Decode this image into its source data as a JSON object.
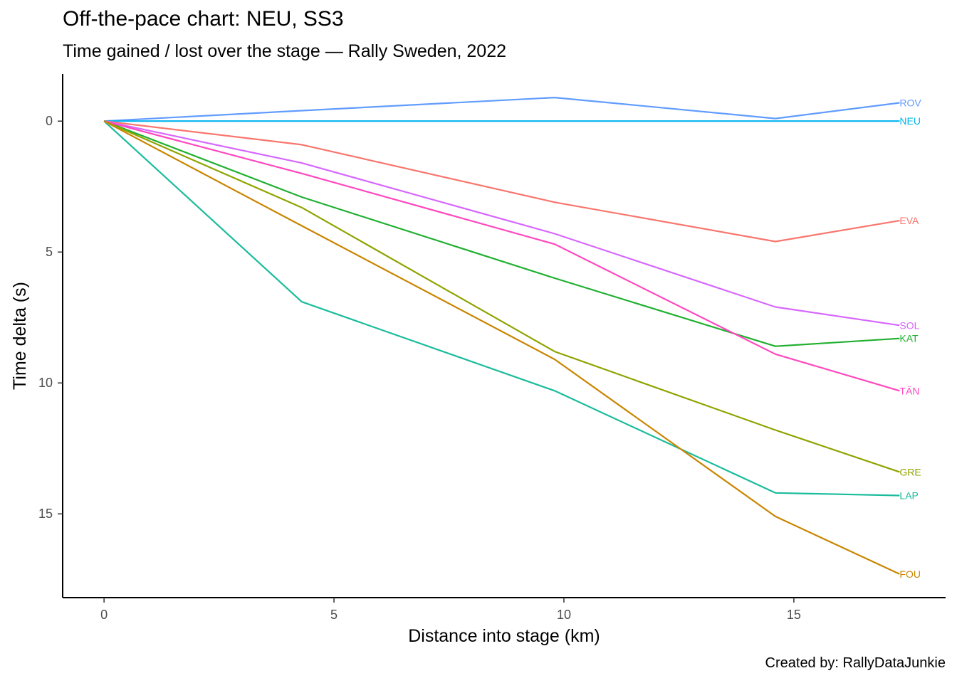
{
  "chart_data": {
    "type": "line",
    "title": "Off-the-pace chart: NEU, SS3",
    "subtitle": "Time gained / lost over the stage — Rally Sweden, 2022",
    "caption": "Created by: RallyDataJunkie",
    "xlabel": "Distance into stage (km)",
    "ylabel": "Time delta (s)",
    "xlim": [
      -0.9,
      18.3
    ],
    "ylim": [
      -1.8,
      18.2
    ],
    "y_reversed": true,
    "x_ticks": [
      0,
      5,
      10,
      15
    ],
    "y_ticks": [
      0,
      5,
      10,
      15
    ],
    "grid": false,
    "legend": "none (direct end labels)",
    "x": [
      0,
      4.3,
      9.8,
      14.6,
      17.3
    ],
    "series": [
      {
        "name": "ROV",
        "color": "#619CFF",
        "values": [
          0,
          -0.4,
          -0.9,
          -0.1,
          -0.7
        ]
      },
      {
        "name": "NEU",
        "color": "#00B4EF",
        "values": [
          0,
          0,
          0,
          0,
          0
        ]
      },
      {
        "name": "EVA",
        "color": "#F8766D",
        "values": [
          0,
          0.9,
          3.1,
          4.6,
          3.8
        ]
      },
      {
        "name": "SOL",
        "color": "#D767FF",
        "values": [
          0,
          1.6,
          4.3,
          7.1,
          7.8
        ]
      },
      {
        "name": "KAT",
        "color": "#20B030",
        "values": [
          0,
          2.9,
          6.0,
          8.6,
          8.3
        ]
      },
      {
        "name": "TÄN",
        "color": "#FF48BE",
        "values": [
          0,
          2.0,
          4.7,
          8.9,
          10.3
        ]
      },
      {
        "name": "GRE",
        "color": "#8FA300",
        "values": [
          0,
          3.3,
          8.8,
          11.8,
          13.4
        ]
      },
      {
        "name": "LAP",
        "color": "#1ABC9C",
        "values": [
          0,
          6.9,
          10.3,
          14.2,
          14.3
        ]
      },
      {
        "name": "FOU",
        "color": "#C98500",
        "values": [
          0,
          4.0,
          9.1,
          15.1,
          17.3
        ]
      }
    ]
  }
}
